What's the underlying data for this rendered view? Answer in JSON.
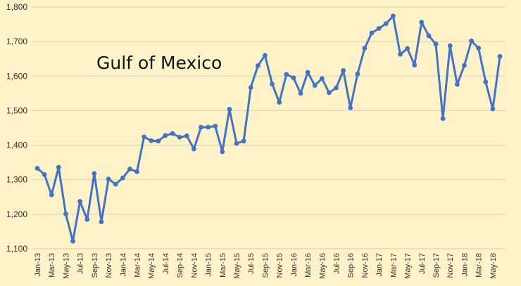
{
  "chart_data": {
    "type": "line",
    "title": "Gulf of Mexico",
    "xlabel": "",
    "ylabel": "",
    "ylim": [
      1100,
      1800
    ],
    "y_ticks": [
      "1,100",
      "1,200",
      "1,300",
      "1,400",
      "1,500",
      "1,600",
      "1,700",
      "1,800"
    ],
    "grid": "horizontal",
    "legend": "none",
    "line_color": "#4472c4",
    "grid_color": "#d9d3b4",
    "x_tick_labels": [
      "Jan-13",
      "Mar-13",
      "May-13",
      "Jul-13",
      "Sep-13",
      "Nov-13",
      "Jan-14",
      "Mar-14",
      "May-14",
      "Jul-14",
      "Sep-14",
      "Nov-14",
      "Jan-15",
      "Mar-15",
      "May-15",
      "Jul-15",
      "Sep-15",
      "Nov-15",
      "Jan-16",
      "Mar-16",
      "May-16",
      "Jul-16",
      "Sep-16",
      "Nov-16",
      "Jan-17",
      "Mar-17",
      "May-17",
      "Jul-17",
      "Sep-17",
      "Nov-17",
      "Jan-18",
      "Mar-18",
      "May-18"
    ],
    "categories": [
      "Jan-13",
      "Feb-13",
      "Mar-13",
      "Apr-13",
      "May-13",
      "Jun-13",
      "Jul-13",
      "Aug-13",
      "Sep-13",
      "Oct-13",
      "Nov-13",
      "Dec-13",
      "Jan-14",
      "Feb-14",
      "Mar-14",
      "Apr-14",
      "May-14",
      "Jun-14",
      "Jul-14",
      "Aug-14",
      "Sep-14",
      "Oct-14",
      "Nov-14",
      "Dec-14",
      "Jan-15",
      "Feb-15",
      "Mar-15",
      "Apr-15",
      "May-15",
      "Jun-15",
      "Jul-15",
      "Aug-15",
      "Sep-15",
      "Oct-15",
      "Nov-15",
      "Dec-15",
      "Jan-16",
      "Feb-16",
      "Mar-16",
      "Apr-16",
      "May-16",
      "Jun-16",
      "Jul-16",
      "Aug-16",
      "Sep-16",
      "Oct-16",
      "Nov-16",
      "Dec-16",
      "Jan-17",
      "Feb-17",
      "Mar-17",
      "Apr-17",
      "May-17",
      "Jun-17",
      "Jul-17",
      "Aug-17",
      "Sep-17",
      "Oct-17",
      "Nov-17",
      "Dec-17",
      "Jan-18",
      "Feb-18",
      "Mar-18",
      "Apr-18",
      "May-18",
      "Jun-18"
    ],
    "values": [
      1333,
      1315,
      1256,
      1336,
      1201,
      1122,
      1237,
      1185,
      1318,
      1178,
      1302,
      1287,
      1305,
      1331,
      1323,
      1424,
      1413,
      1412,
      1428,
      1434,
      1423,
      1427,
      1389,
      1452,
      1452,
      1455,
      1381,
      1504,
      1405,
      1412,
      1567,
      1630,
      1660,
      1577,
      1524,
      1605,
      1595,
      1550,
      1611,
      1573,
      1593,
      1552,
      1566,
      1616,
      1508,
      1606,
      1681,
      1725,
      1738,
      1752,
      1774,
      1663,
      1680,
      1632,
      1756,
      1717,
      1693,
      1477,
      1688,
      1576,
      1631,
      1702,
      1681,
      1583,
      1505,
      1657
    ]
  }
}
